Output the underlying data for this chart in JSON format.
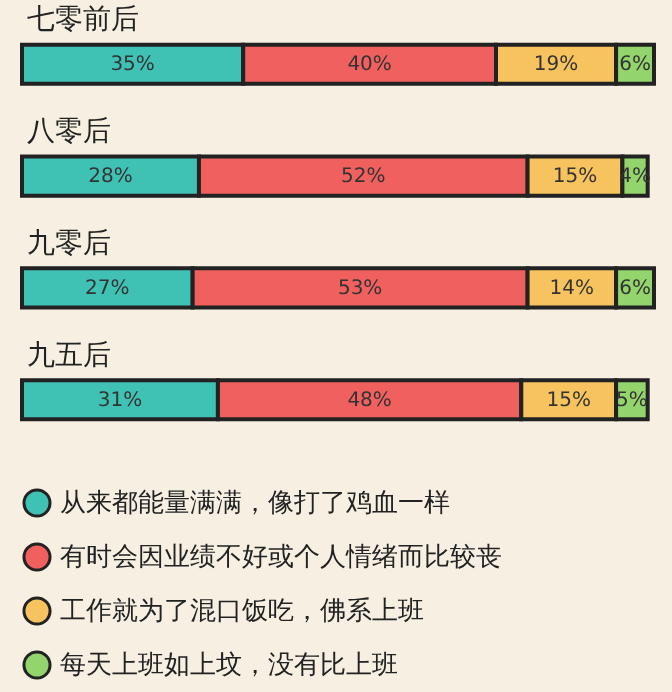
{
  "chart_data": {
    "type": "bar",
    "orientation": "horizontal",
    "stacked": true,
    "categories": [
      "七零前后",
      "八零后",
      "九零后",
      "九五后"
    ],
    "xlim": [
      0,
      100
    ],
    "tick_labels": "y",
    "legend": "bottom",
    "series": [
      {
        "name": "从来都能量满满，像打了鸡血一样",
        "color": "#3fc1b4",
        "values": [
          35,
          28,
          27,
          31
        ],
        "value_labels": [
          "35%",
          "28%",
          "27%",
          "31%"
        ]
      },
      {
        "name": "有时会因业绩不好或个人情绪而比较丧",
        "color": "#f0605e",
        "values": [
          40,
          52,
          53,
          48
        ],
        "value_labels": [
          "40%",
          "52%",
          "53%",
          "48%"
        ]
      },
      {
        "name": "工作就为了混口饭吃，佛系上班",
        "color": "#f6c35e",
        "values": [
          19,
          15,
          14,
          15
        ],
        "value_labels": [
          "19%",
          "15%",
          "14%",
          "15%"
        ]
      },
      {
        "name": "每天上班如上坟，没有比上班",
        "color": "#93d46d",
        "values": [
          6,
          4,
          6,
          5
        ],
        "value_labels": [
          "6%",
          "4%",
          "6%",
          "5%"
        ]
      }
    ]
  }
}
